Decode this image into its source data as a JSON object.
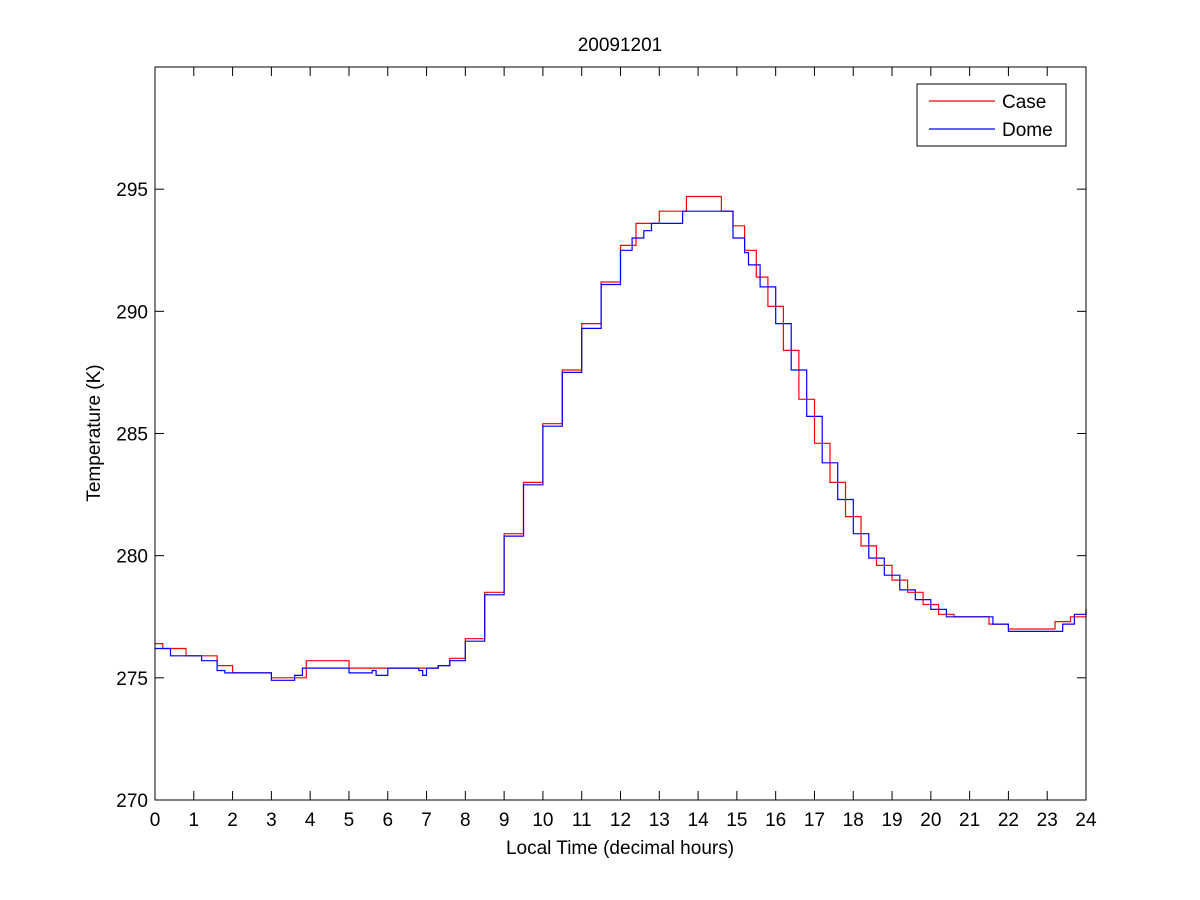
{
  "chart_data": {
    "type": "line",
    "title": "20091201",
    "xlabel": "Local Time (decimal hours)",
    "ylabel": "Temperature (K)",
    "xlim": [
      0,
      24
    ],
    "ylim": [
      270,
      300
    ],
    "xticks": [
      0,
      1,
      2,
      3,
      4,
      5,
      6,
      7,
      8,
      9,
      10,
      11,
      12,
      13,
      14,
      15,
      16,
      17,
      18,
      19,
      20,
      21,
      22,
      23,
      24
    ],
    "xtick_labels": [
      "0",
      "1",
      "2",
      "3",
      "4",
      "5",
      "6",
      "7",
      "8",
      "9",
      "10",
      "11",
      "12",
      "13",
      "14",
      "15",
      "16",
      "17",
      "18",
      "19",
      "20",
      "21",
      "22",
      "23",
      "24"
    ],
    "yticks": [
      270,
      275,
      280,
      285,
      290,
      295
    ],
    "ytick_labels": [
      "270",
      "275",
      "280",
      "285",
      "290",
      "295"
    ],
    "grid": false,
    "legend_position": "top-right",
    "series": [
      {
        "name": "Case",
        "color": "#ff0000",
        "x": [
          0,
          0.2,
          0.4,
          0.8,
          1.2,
          1.6,
          2.0,
          2.5,
          3.0,
          3.5,
          3.9,
          4.5,
          5.0,
          5.5,
          6.0,
          6.5,
          7.0,
          7.3,
          7.6,
          8.0,
          8.5,
          9.0,
          9.5,
          10.0,
          10.5,
          11.0,
          11.5,
          12.0,
          12.4,
          12.7,
          13.0,
          13.5,
          13.7,
          14.0,
          14.4,
          14.6,
          14.9,
          15.2,
          15.5,
          15.8,
          16.2,
          16.6,
          17.0,
          17.4,
          17.8,
          18.2,
          18.6,
          19.0,
          19.4,
          19.8,
          20.2,
          20.6,
          21.0,
          21.5,
          22.0,
          22.5,
          23.0,
          23.2,
          23.6,
          24.0
        ],
        "y": [
          276.4,
          276.2,
          276.2,
          275.9,
          275.9,
          275.5,
          275.2,
          275.2,
          275.0,
          275.0,
          275.7,
          275.7,
          275.4,
          275.4,
          275.4,
          275.4,
          275.4,
          275.5,
          275.8,
          276.6,
          278.5,
          280.9,
          283.0,
          285.4,
          287.6,
          289.5,
          291.2,
          292.7,
          293.6,
          293.6,
          294.1,
          294.1,
          294.7,
          294.7,
          294.7,
          294.1,
          293.5,
          292.5,
          291.4,
          290.2,
          288.4,
          286.4,
          284.6,
          283.0,
          281.6,
          280.4,
          279.6,
          279.0,
          278.5,
          278.0,
          277.6,
          277.5,
          277.5,
          277.2,
          277.0,
          277.0,
          277.0,
          277.3,
          277.5,
          277.8
        ]
      },
      {
        "name": "Dome",
        "color": "#0000ff",
        "x": [
          0,
          0.4,
          0.8,
          1.2,
          1.6,
          1.8,
          2.2,
          2.6,
          3.0,
          3.4,
          3.6,
          3.8,
          4.2,
          4.6,
          5.0,
          5.3,
          5.6,
          5.7,
          6.0,
          6.5,
          6.8,
          6.9,
          7.0,
          7.3,
          7.6,
          8.0,
          8.5,
          9.0,
          9.5,
          10.0,
          10.5,
          11.0,
          11.5,
          12.0,
          12.3,
          12.6,
          12.8,
          13.1,
          13.4,
          13.6,
          13.8,
          14.2,
          14.6,
          14.9,
          15.2,
          15.3,
          15.6,
          16.0,
          16.4,
          16.8,
          17.2,
          17.6,
          18.0,
          18.4,
          18.8,
          19.2,
          19.6,
          20.0,
          20.4,
          21.0,
          21.6,
          22.0,
          22.5,
          23.0,
          23.4,
          23.7,
          24.0
        ],
        "y": [
          276.2,
          275.9,
          275.9,
          275.7,
          275.3,
          275.2,
          275.2,
          275.2,
          274.9,
          274.9,
          275.1,
          275.4,
          275.4,
          275.4,
          275.2,
          275.2,
          275.3,
          275.1,
          275.4,
          275.4,
          275.3,
          275.1,
          275.4,
          275.5,
          275.7,
          276.5,
          278.4,
          280.8,
          282.9,
          285.3,
          287.5,
          289.3,
          291.1,
          292.5,
          293.0,
          293.3,
          293.6,
          293.6,
          293.6,
          294.1,
          294.1,
          294.1,
          294.1,
          293.0,
          292.4,
          291.9,
          291.0,
          289.5,
          287.6,
          285.7,
          283.8,
          282.3,
          280.9,
          279.9,
          279.2,
          278.6,
          278.2,
          277.8,
          277.5,
          277.5,
          277.2,
          276.9,
          276.9,
          276.9,
          277.2,
          277.6,
          277.8
        ]
      }
    ]
  }
}
